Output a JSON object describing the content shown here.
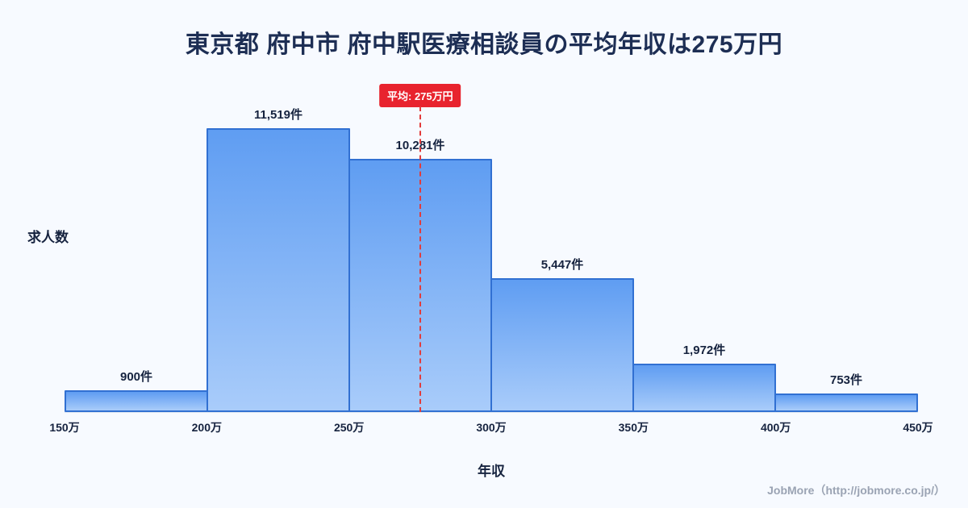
{
  "title": "東京都 府中市 府中駅医療相談員の平均年収は275万円",
  "footer": {
    "credit": "JobMore（http://jobmore.co.jp/）"
  },
  "chart_data": {
    "type": "bar",
    "subtype": "histogram",
    "title": "東京都 府中市 府中駅医療相談員の平均年収は275万円",
    "xlabel": "年収",
    "ylabel": "求人数",
    "x_range": [
      150,
      450
    ],
    "x_tick_labels": [
      "150万",
      "200万",
      "250万",
      "300万",
      "350万",
      "400万",
      "450万"
    ],
    "bins": [
      {
        "range": "150万-200万",
        "value": 900,
        "label": "900件"
      },
      {
        "range": "200万-250万",
        "value": 11519,
        "label": "11,519件"
      },
      {
        "range": "250万-300万",
        "value": 10281,
        "label": "10,281件"
      },
      {
        "range": "300万-350万",
        "value": 5447,
        "label": "5,447件"
      },
      {
        "range": "350万-400万",
        "value": 1972,
        "label": "1,972件"
      },
      {
        "range": "400万-450万",
        "value": 753,
        "label": "753件"
      }
    ],
    "average_line": {
      "x": 275,
      "label": "平均: 275万円"
    },
    "ylim": [
      0,
      12000
    ],
    "grid": false,
    "legend": false,
    "colors": {
      "bar_gradient_top": "#5f9df2",
      "bar_gradient_bottom": "#a9ccfa",
      "bar_border": "#3170d2",
      "accent_red": "#e8232e",
      "text_dark": "#16233f",
      "background": "#f7faff"
    }
  }
}
